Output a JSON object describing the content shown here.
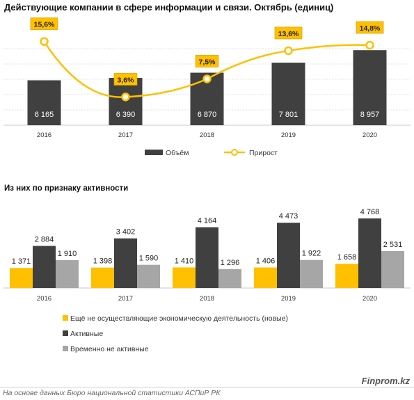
{
  "title": "Действующие компании в сфере информации и связи. Октябрь (единиц)",
  "subtitle": "Из них по признаку активности",
  "source": "На основе данных Бюро национальной статистики АСПиР РК",
  "brand": "Finprom.kz",
  "colors": {
    "dark": "#404040",
    "yellow": "#FFC000",
    "gray": "#A6A6A6"
  },
  "chart_data": [
    {
      "type": "bar",
      "categories": [
        "2016",
        "2017",
        "2018",
        "2019",
        "2020"
      ],
      "series": [
        {
          "name": "Объём",
          "values": [
            6165,
            6390,
            6870,
            7801,
            8957
          ],
          "labels": [
            "6 165",
            "6 390",
            "6 870",
            "7 801",
            "8 957"
          ]
        },
        {
          "name": "Прирост",
          "type": "line",
          "values": [
            15.6,
            3.6,
            7.5,
            13.6,
            14.8
          ],
          "labels": [
            "15,6%",
            "3,6%",
            "7,5%",
            "13,6%",
            "14,8%"
          ]
        }
      ],
      "legend": "bottom",
      "grid": true
    },
    {
      "type": "bar",
      "categories": [
        "2016",
        "2017",
        "2018",
        "2019",
        "2020"
      ],
      "series": [
        {
          "name": "Ещё не осуществляющие экономическую деятельность (новые)",
          "values": [
            1371,
            1398,
            1410,
            1406,
            1658
          ],
          "labels": [
            "1 371",
            "1 398",
            "1 410",
            "1 406",
            "1 658"
          ]
        },
        {
          "name": "Активные",
          "values": [
            2884,
            3402,
            4164,
            4473,
            4768
          ],
          "labels": [
            "2 884",
            "3 402",
            "4 164",
            "4 473",
            "4 768"
          ]
        },
        {
          "name": "Временно не активные",
          "values": [
            1910,
            1590,
            1296,
            1922,
            2531
          ],
          "labels": [
            "1 910",
            "1 590",
            "1 296",
            "1 922",
            "2 531"
          ]
        }
      ],
      "legend": "bottom",
      "grid": false
    }
  ]
}
